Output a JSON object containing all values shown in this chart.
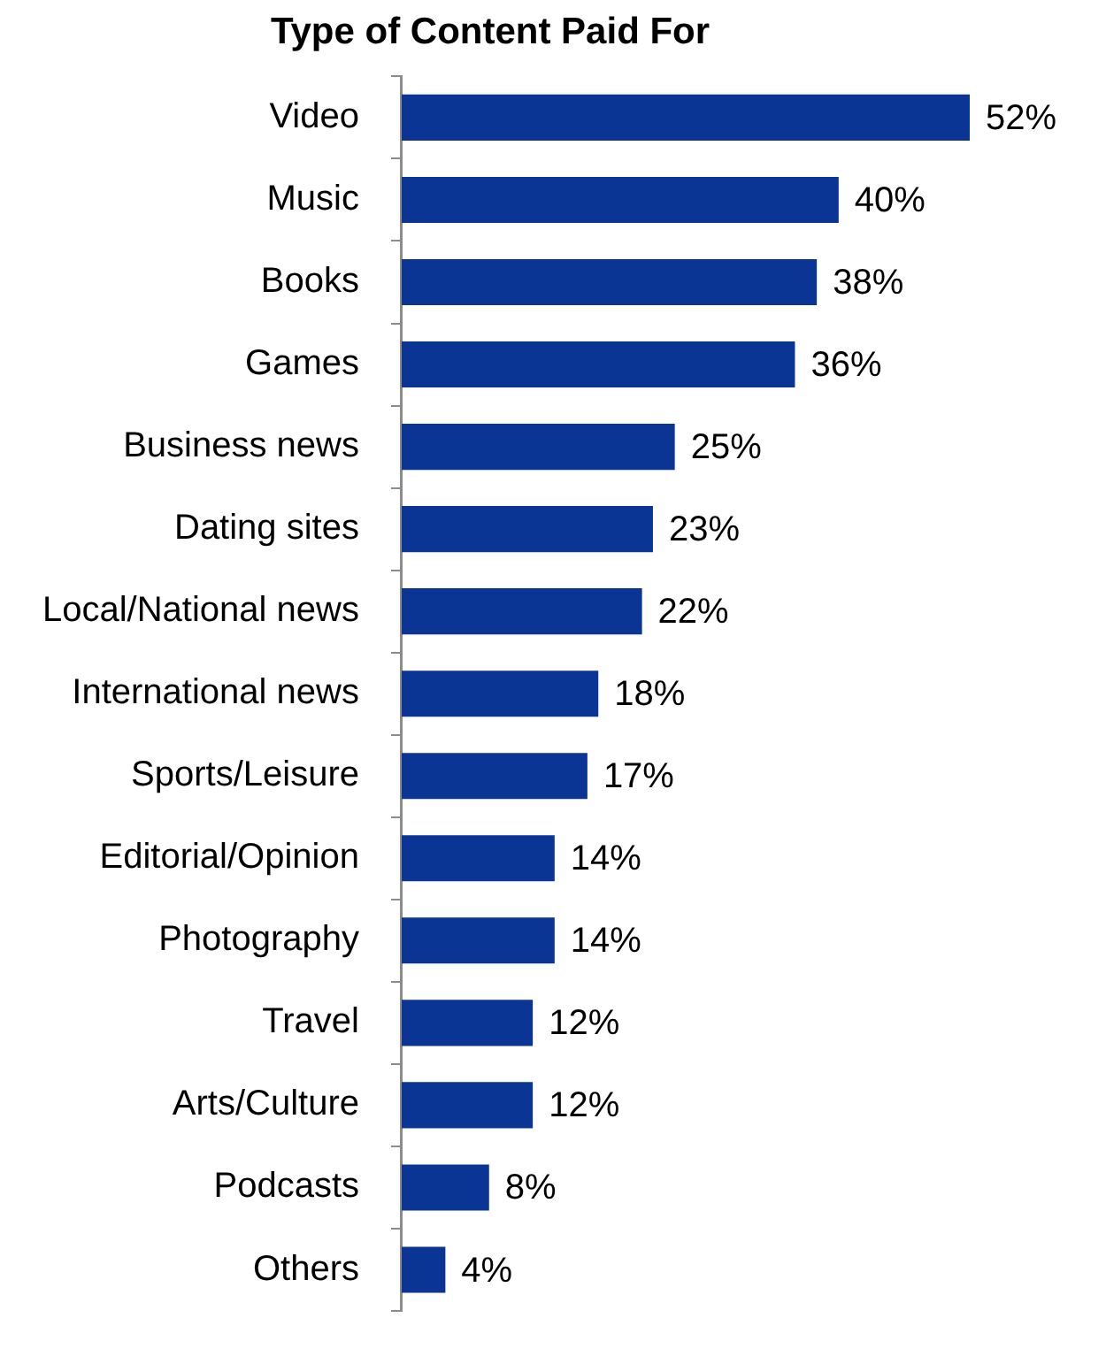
{
  "chart_data": {
    "type": "bar",
    "orientation": "horizontal",
    "title": "Type of Content Paid For",
    "categories": [
      "Video",
      "Music",
      "Books",
      "Games",
      "Business news",
      "Dating sites",
      "Local/National news",
      "International news",
      "Sports/Leisure",
      "Editorial/Opinion",
      "Photography",
      "Travel",
      "Arts/Culture",
      "Podcasts",
      "Others"
    ],
    "values": [
      52,
      40,
      38,
      36,
      25,
      23,
      22,
      18,
      17,
      14,
      14,
      12,
      12,
      8,
      4
    ],
    "value_labels": [
      "52%",
      "40%",
      "38%",
      "36%",
      "25%",
      "23%",
      "22%",
      "18%",
      "17%",
      "14%",
      "14%",
      "12%",
      "12%",
      "8%",
      "4%"
    ],
    "color": "#0a3594",
    "tick_labels": "y",
    "grid": false,
    "legend": false
  }
}
